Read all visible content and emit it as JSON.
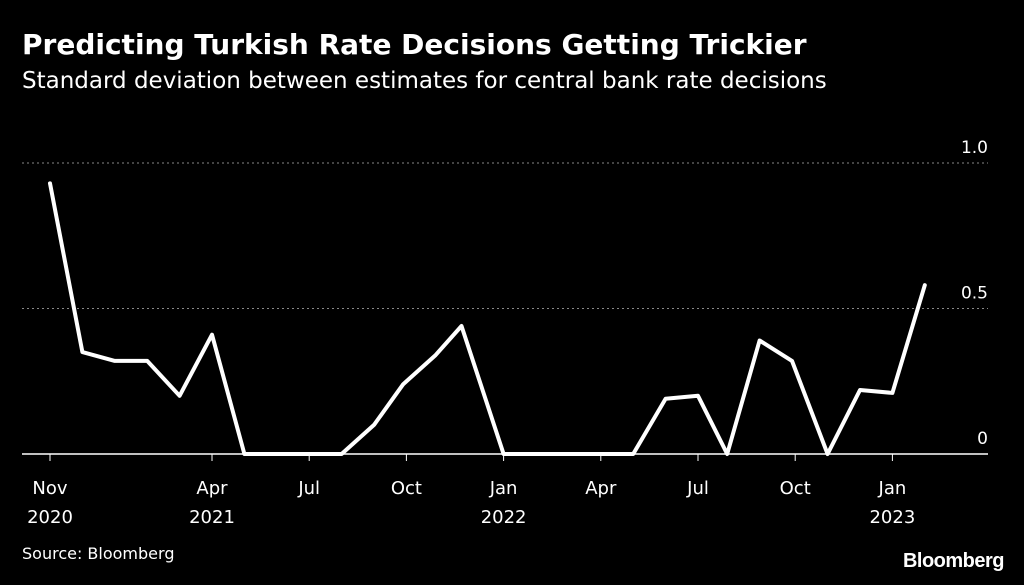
{
  "title": "Predicting Turkish Rate Decisions Getting Trickier",
  "subtitle": "Standard deviation between estimates for central bank rate decisions",
  "source": "Source: Bloomberg",
  "logo": "Bloomberg",
  "colors": {
    "background": "#000000",
    "line": "#ffffff",
    "gridline": "#888888",
    "text": "#ffffff"
  },
  "chart_data": {
    "type": "line",
    "title": "Predicting Turkish Rate Decisions Getting Trickier",
    "subtitle": "Standard deviation between estimates for central bank rate decisions",
    "xlabel": "",
    "ylabel": "",
    "ylim": [
      0,
      1.0
    ],
    "yticks": [
      0,
      0.5,
      1.0
    ],
    "ytick_labels": [
      "0",
      "0.5",
      "1.0"
    ],
    "grid": true,
    "x_start": "2020-11",
    "x_end": "2023-02",
    "xticks": [
      {
        "month_index": 0,
        "label": "Nov",
        "year": "2020"
      },
      {
        "month_index": 5,
        "label": "Apr",
        "year": "2021"
      },
      {
        "month_index": 8,
        "label": "Jul",
        "year": ""
      },
      {
        "month_index": 11,
        "label": "Oct",
        "year": ""
      },
      {
        "month_index": 14,
        "label": "Jan",
        "year": "2022"
      },
      {
        "month_index": 17,
        "label": "Apr",
        "year": ""
      },
      {
        "month_index": 20,
        "label": "Jul",
        "year": ""
      },
      {
        "month_index": 23,
        "label": "Oct",
        "year": ""
      },
      {
        "month_index": 26,
        "label": "Jan",
        "year": "2023"
      }
    ],
    "series": [
      {
        "name": "Standard deviation",
        "points": [
          {
            "month_index": 0.0,
            "value": 0.93
          },
          {
            "month_index": 1.0,
            "value": 0.35
          },
          {
            "month_index": 2.0,
            "value": 0.32
          },
          {
            "month_index": 3.0,
            "value": 0.32
          },
          {
            "month_index": 4.0,
            "value": 0.2
          },
          {
            "month_index": 5.0,
            "value": 0.41
          },
          {
            "month_index": 6.0,
            "value": 0.0
          },
          {
            "month_index": 7.0,
            "value": 0.0
          },
          {
            "month_index": 8.0,
            "value": 0.0
          },
          {
            "month_index": 9.0,
            "value": 0.0
          },
          {
            "month_index": 10.0,
            "value": 0.1
          },
          {
            "month_index": 10.9,
            "value": 0.24
          },
          {
            "month_index": 11.9,
            "value": 0.34
          },
          {
            "month_index": 12.7,
            "value": 0.44
          },
          {
            "month_index": 14.0,
            "value": 0.0
          },
          {
            "month_index": 15.0,
            "value": 0.0
          },
          {
            "month_index": 16.0,
            "value": 0.0
          },
          {
            "month_index": 17.0,
            "value": 0.0
          },
          {
            "month_index": 18.0,
            "value": 0.0
          },
          {
            "month_index": 19.0,
            "value": 0.19
          },
          {
            "month_index": 20.0,
            "value": 0.2
          },
          {
            "month_index": 20.9,
            "value": 0.0
          },
          {
            "month_index": 21.9,
            "value": 0.39
          },
          {
            "month_index": 22.9,
            "value": 0.32
          },
          {
            "month_index": 24.0,
            "value": 0.0
          },
          {
            "month_index": 25.0,
            "value": 0.22
          },
          {
            "month_index": 26.0,
            "value": 0.21
          },
          {
            "month_index": 27.0,
            "value": 0.58
          }
        ]
      }
    ]
  }
}
